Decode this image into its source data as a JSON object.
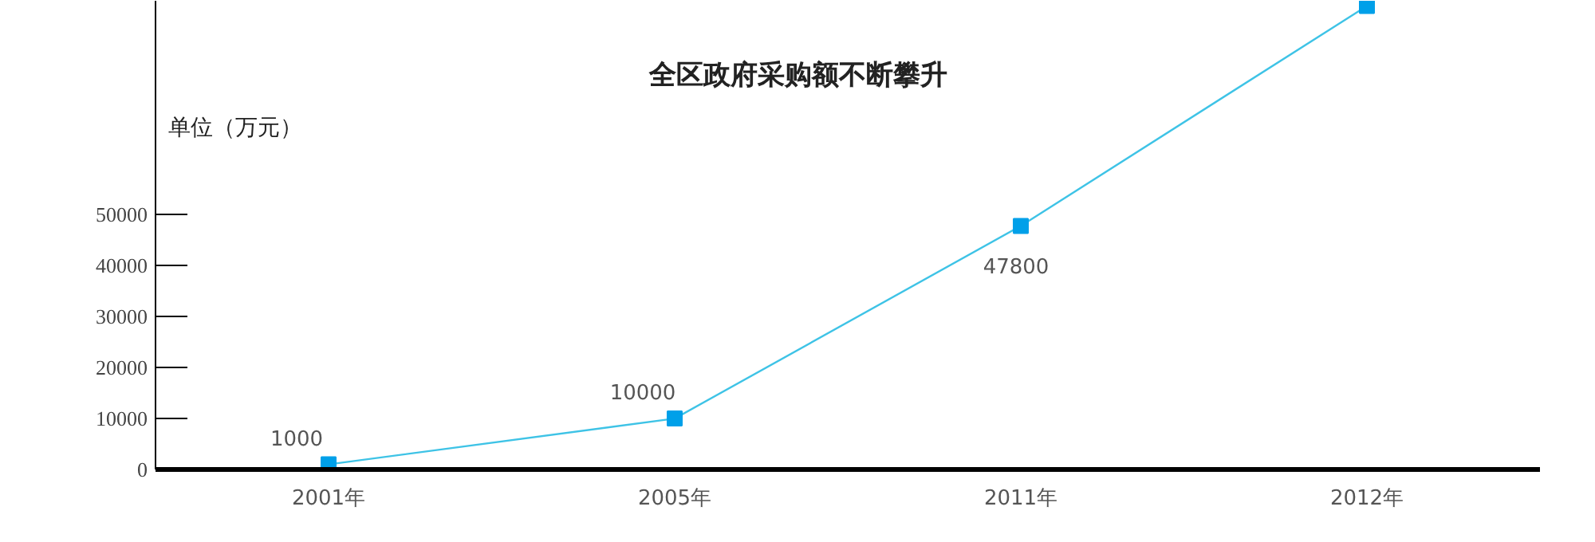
{
  "chart_data": {
    "type": "line",
    "title": "全区政府采购额不断攀升",
    "ylabel": "单位（万元）",
    "categories": [
      "2001年",
      "2005年",
      "2011年",
      "2012年"
    ],
    "series": [
      {
        "color": "#3ec3e6",
        "values": [
          1000,
          10000,
          47800,
          91000
        ],
        "value_labels": [
          "1000",
          "10000",
          "47800",
          null
        ]
      }
    ],
    "ylim": [
      0,
      92000
    ],
    "yticks": [
      0,
      10000,
      20000,
      30000,
      40000,
      50000
    ],
    "marker": "square",
    "grid": false
  }
}
